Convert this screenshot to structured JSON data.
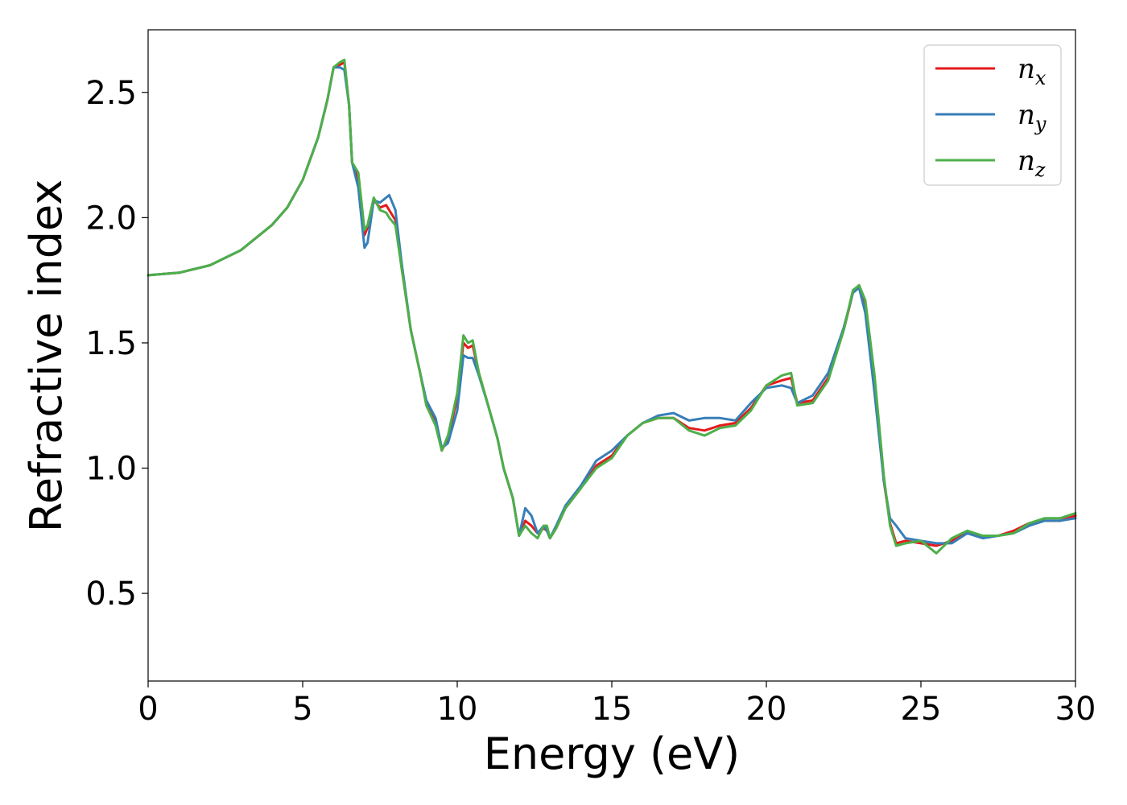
{
  "chart_data": {
    "type": "line",
    "xlabel": "Energy (eV)",
    "ylabel": "Refractive index",
    "xlim": [
      0,
      30
    ],
    "ylim": [
      0.15,
      2.75
    ],
    "x_ticks": [
      "0",
      "5",
      "10",
      "15",
      "20",
      "25",
      "30"
    ],
    "y_ticks": [
      "0.5",
      "1.0",
      "1.5",
      "2.0",
      "2.5"
    ],
    "grid": false,
    "legend_position": "top-right",
    "series": [
      {
        "name": "n_x",
        "legend_base": "n",
        "legend_sub": "x",
        "color": "#e41a1c",
        "x": [
          0,
          1,
          2,
          3,
          4,
          4.5,
          5,
          5.5,
          5.8,
          6.0,
          6.2,
          6.35,
          6.5,
          6.6,
          6.8,
          7.0,
          7.1,
          7.3,
          7.5,
          7.7,
          7.8,
          8.0,
          8.2,
          8.5,
          8.8,
          9.0,
          9.3,
          9.5,
          9.7,
          10.0,
          10.2,
          10.35,
          10.5,
          10.7,
          11.0,
          11.3,
          11.5,
          11.8,
          12.0,
          12.2,
          12.4,
          12.6,
          12.8,
          12.9,
          13.0,
          13.2,
          13.5,
          14.0,
          14.5,
          15.0,
          15.5,
          16.0,
          16.5,
          17.0,
          17.5,
          18.0,
          18.5,
          19.0,
          19.5,
          20.0,
          20.5,
          20.8,
          21.0,
          21.5,
          22.0,
          22.5,
          22.8,
          23.0,
          23.2,
          23.5,
          23.8,
          24.0,
          24.2,
          24.5,
          25.0,
          25.5,
          26.0,
          26.5,
          27.0,
          27.5,
          28.0,
          28.5,
          29.0,
          29.5,
          30.0
        ],
        "y": [
          1.77,
          1.78,
          1.81,
          1.87,
          1.97,
          2.04,
          2.15,
          2.32,
          2.47,
          2.6,
          2.61,
          2.62,
          2.45,
          2.22,
          2.15,
          1.93,
          1.96,
          2.07,
          2.04,
          2.05,
          2.03,
          1.99,
          1.8,
          1.55,
          1.38,
          1.26,
          1.18,
          1.07,
          1.12,
          1.28,
          1.5,
          1.48,
          1.49,
          1.38,
          1.25,
          1.12,
          1.0,
          0.88,
          0.73,
          0.79,
          0.77,
          0.74,
          0.76,
          0.75,
          0.72,
          0.76,
          0.84,
          0.92,
          1.01,
          1.05,
          1.13,
          1.18,
          1.2,
          1.2,
          1.16,
          1.15,
          1.17,
          1.18,
          1.24,
          1.33,
          1.35,
          1.36,
          1.26,
          1.27,
          1.36,
          1.55,
          1.7,
          1.73,
          1.66,
          1.35,
          0.95,
          0.78,
          0.7,
          0.71,
          0.7,
          0.69,
          0.71,
          0.74,
          0.73,
          0.73,
          0.75,
          0.78,
          0.79,
          0.79,
          0.81
        ]
      },
      {
        "name": "n_y",
        "legend_base": "n",
        "legend_sub": "y",
        "color": "#377eb8",
        "x": [
          0,
          1,
          2,
          3,
          4,
          4.5,
          5,
          5.5,
          5.8,
          6.0,
          6.2,
          6.35,
          6.5,
          6.6,
          6.8,
          7.0,
          7.1,
          7.3,
          7.5,
          7.7,
          7.8,
          8.0,
          8.2,
          8.5,
          8.8,
          9.0,
          9.3,
          9.5,
          9.7,
          10.0,
          10.2,
          10.35,
          10.5,
          10.7,
          11.0,
          11.3,
          11.5,
          11.8,
          12.0,
          12.2,
          12.4,
          12.6,
          12.8,
          12.9,
          13.0,
          13.2,
          13.5,
          14.0,
          14.5,
          15.0,
          15.5,
          16.0,
          16.5,
          17.0,
          17.5,
          18.0,
          18.5,
          19.0,
          19.5,
          20.0,
          20.5,
          20.8,
          21.0,
          21.5,
          22.0,
          22.5,
          22.8,
          23.0,
          23.2,
          23.5,
          23.8,
          24.0,
          24.2,
          24.5,
          25.0,
          25.5,
          26.0,
          26.5,
          27.0,
          27.5,
          28.0,
          28.5,
          29.0,
          29.5,
          30.0
        ],
        "y": [
          1.77,
          1.78,
          1.81,
          1.87,
          1.97,
          2.04,
          2.15,
          2.32,
          2.47,
          2.6,
          2.6,
          2.59,
          2.45,
          2.22,
          2.12,
          1.88,
          1.9,
          2.07,
          2.06,
          2.08,
          2.09,
          2.03,
          1.82,
          1.55,
          1.38,
          1.27,
          1.2,
          1.08,
          1.1,
          1.23,
          1.45,
          1.44,
          1.44,
          1.37,
          1.25,
          1.12,
          1.0,
          0.88,
          0.73,
          0.84,
          0.81,
          0.74,
          0.77,
          0.75,
          0.72,
          0.77,
          0.85,
          0.93,
          1.03,
          1.07,
          1.13,
          1.18,
          1.21,
          1.22,
          1.19,
          1.2,
          1.2,
          1.19,
          1.26,
          1.32,
          1.33,
          1.32,
          1.26,
          1.29,
          1.38,
          1.56,
          1.7,
          1.72,
          1.62,
          1.3,
          0.95,
          0.8,
          0.77,
          0.72,
          0.71,
          0.7,
          0.7,
          0.74,
          0.72,
          0.73,
          0.74,
          0.77,
          0.79,
          0.79,
          0.8
        ]
      },
      {
        "name": "n_z",
        "legend_base": "n",
        "legend_sub": "z",
        "color": "#4daf4a",
        "x": [
          0,
          1,
          2,
          3,
          4,
          4.5,
          5,
          5.5,
          5.8,
          6.0,
          6.2,
          6.35,
          6.5,
          6.6,
          6.8,
          7.0,
          7.1,
          7.3,
          7.5,
          7.7,
          7.8,
          8.0,
          8.2,
          8.5,
          8.8,
          9.0,
          9.3,
          9.5,
          9.7,
          10.0,
          10.2,
          10.35,
          10.5,
          10.7,
          11.0,
          11.3,
          11.5,
          11.8,
          12.0,
          12.2,
          12.4,
          12.6,
          12.8,
          12.9,
          13.0,
          13.2,
          13.5,
          14.0,
          14.5,
          15.0,
          15.5,
          16.0,
          16.5,
          17.0,
          17.5,
          18.0,
          18.5,
          19.0,
          19.5,
          20.0,
          20.5,
          20.8,
          21.0,
          21.5,
          22.0,
          22.5,
          22.8,
          23.0,
          23.2,
          23.5,
          23.8,
          24.0,
          24.2,
          24.5,
          25.0,
          25.5,
          26.0,
          26.5,
          27.0,
          27.5,
          28.0,
          28.5,
          29.0,
          29.5,
          30.0
        ],
        "y": [
          1.77,
          1.78,
          1.81,
          1.87,
          1.97,
          2.04,
          2.15,
          2.32,
          2.47,
          2.6,
          2.62,
          2.63,
          2.45,
          2.22,
          2.18,
          1.95,
          1.97,
          2.08,
          2.03,
          2.02,
          2.0,
          1.97,
          1.8,
          1.55,
          1.38,
          1.25,
          1.17,
          1.07,
          1.13,
          1.3,
          1.53,
          1.5,
          1.51,
          1.38,
          1.25,
          1.12,
          1.0,
          0.88,
          0.73,
          0.77,
          0.74,
          0.72,
          0.77,
          0.77,
          0.72,
          0.76,
          0.84,
          0.92,
          1.0,
          1.04,
          1.13,
          1.18,
          1.2,
          1.2,
          1.15,
          1.13,
          1.16,
          1.17,
          1.23,
          1.33,
          1.37,
          1.38,
          1.25,
          1.26,
          1.35,
          1.55,
          1.71,
          1.73,
          1.67,
          1.37,
          0.97,
          0.77,
          0.69,
          0.7,
          0.71,
          0.66,
          0.72,
          0.75,
          0.73,
          0.73,
          0.74,
          0.78,
          0.8,
          0.8,
          0.82
        ]
      }
    ]
  }
}
